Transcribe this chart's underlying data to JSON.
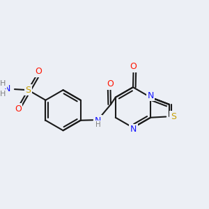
{
  "bg_color": "#eceff5",
  "bond_color": "#1a1a1a",
  "atom_colors": {
    "N": "#1414ff",
    "O": "#ff1400",
    "S_sulfo": "#c8a000",
    "S_thia": "#c8a000",
    "H": "#808080",
    "C": "#1a1a1a"
  },
  "figsize": [
    3.0,
    3.0
  ],
  "dpi": 100
}
